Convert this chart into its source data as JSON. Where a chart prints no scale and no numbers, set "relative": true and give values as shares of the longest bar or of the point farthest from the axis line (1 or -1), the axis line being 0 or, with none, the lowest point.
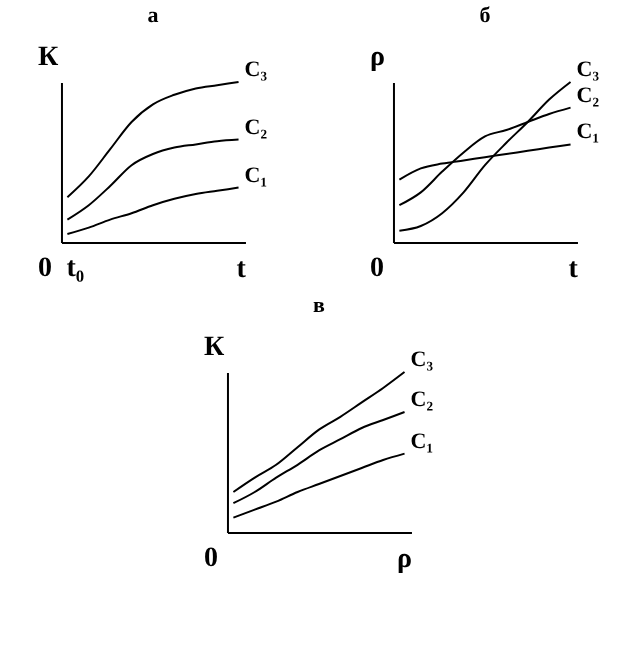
{
  "chart_data": [
    {
      "type": "line",
      "title": "а",
      "xlabel": "t",
      "ylabel": "К",
      "relative": true,
      "legend": false,
      "categories": [
        null,
        null,
        null,
        null,
        null,
        null,
        null,
        null,
        null
      ],
      "annotations": [
        "0",
        "t₀"
      ],
      "series": [
        {
          "name": "C₃",
          "color": "#000000",
          "values": [
            0.28,
            0.41,
            0.58,
            0.75,
            0.86,
            0.92,
            0.96,
            0.98,
            1.0
          ]
        },
        {
          "name": "C₂",
          "color": "#000000",
          "values": [
            0.14,
            0.23,
            0.35,
            0.48,
            0.55,
            0.59,
            0.61,
            0.63,
            0.64
          ]
        },
        {
          "name": "C₁",
          "color": "#000000",
          "values": [
            0.05,
            0.09,
            0.14,
            0.18,
            0.23,
            0.27,
            0.3,
            0.32,
            0.34
          ]
        }
      ]
    },
    {
      "type": "line",
      "title": "б",
      "xlabel": "t",
      "ylabel": "ρ",
      "relative": true,
      "legend": false,
      "categories": [
        null,
        null,
        null,
        null,
        null,
        null,
        null,
        null,
        null
      ],
      "annotations": [
        "0"
      ],
      "series": [
        {
          "name": "C₃",
          "color": "#000000",
          "values": [
            0.07,
            0.1,
            0.18,
            0.31,
            0.48,
            0.62,
            0.75,
            0.89,
            1.0
          ]
        },
        {
          "name": "C₂",
          "color": "#000000",
          "values": [
            0.23,
            0.31,
            0.44,
            0.56,
            0.66,
            0.7,
            0.75,
            0.8,
            0.84
          ]
        },
        {
          "name": "C₁",
          "color": "#000000",
          "values": [
            0.39,
            0.46,
            0.49,
            0.51,
            0.53,
            0.55,
            0.57,
            0.59,
            0.61
          ]
        }
      ]
    },
    {
      "type": "line",
      "title": "в",
      "xlabel": "ρ",
      "ylabel": "К",
      "relative": true,
      "legend": false,
      "categories": [
        null,
        null,
        null,
        null,
        null,
        null,
        null,
        null,
        null
      ],
      "annotations": [
        "0"
      ],
      "series": [
        {
          "name": "C₃",
          "color": "#000000",
          "values": [
            0.25,
            0.34,
            0.42,
            0.53,
            0.64,
            0.72,
            0.81,
            0.9,
            1.0
          ]
        },
        {
          "name": "C₂",
          "color": "#000000",
          "values": [
            0.18,
            0.25,
            0.34,
            0.42,
            0.51,
            0.58,
            0.65,
            0.7,
            0.75
          ]
        },
        {
          "name": "C₁",
          "color": "#000000",
          "values": [
            0.09,
            0.14,
            0.19,
            0.25,
            0.3,
            0.35,
            0.4,
            0.45,
            0.49
          ]
        }
      ]
    }
  ]
}
